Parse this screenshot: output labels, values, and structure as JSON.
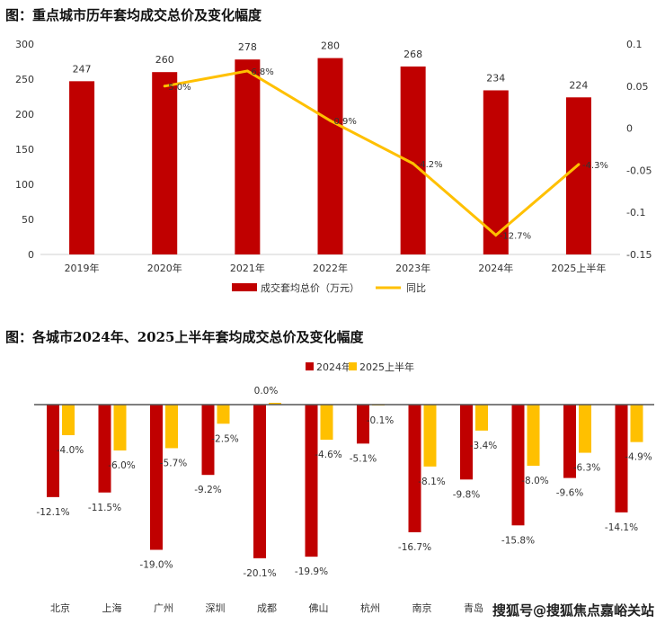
{
  "chart_data": [
    {
      "type": "bar",
      "title": "图：重点城市历年套均成交总价及变化幅度",
      "categories": [
        "2019年",
        "2020年",
        "2021年",
        "2022年",
        "2023年",
        "2024年",
        "2025上半年"
      ],
      "series": [
        {
          "name": "成交套均总价（万元）",
          "type": "bar",
          "axis": "left",
          "color": "#C00000",
          "values": [
            247,
            260,
            278,
            280,
            268,
            234,
            224
          ],
          "labels": [
            "247",
            "260",
            "278",
            "280",
            "268",
            "234",
            "224"
          ]
        },
        {
          "name": "同比",
          "type": "line",
          "axis": "right",
          "color": "#FFC000",
          "values": [
            null,
            0.05,
            0.068,
            0.009,
            -0.042,
            -0.127,
            -0.043
          ],
          "labels": [
            "",
            "5.0%",
            "6.8%",
            "0.9%",
            "-4.2%",
            "-12.7%",
            "-4.3%"
          ]
        }
      ],
      "ylim": [
        0,
        300
      ],
      "yticks": [
        "0",
        "50",
        "100",
        "150",
        "200",
        "250",
        "300"
      ],
      "y2lim": [
        -0.15,
        0.1
      ],
      "y2ticks": [
        "-0.15",
        "-0.1",
        "-0.05",
        "0",
        "0.05",
        "0.1"
      ],
      "legend": "bottom",
      "grid": false
    },
    {
      "type": "bar",
      "title": "图：各城市2024年、2025上半年套均成交总价及变化幅度",
      "categories": [
        "北京",
        "上海",
        "广州",
        "深圳",
        "成都",
        "佛山",
        "杭州",
        "南京",
        "青岛",
        "",
        "",
        ""
      ],
      "series": [
        {
          "name": "2024年",
          "color": "#C00000",
          "values": [
            -12.1,
            -11.5,
            -19.0,
            -9.2,
            -20.1,
            -19.9,
            -5.1,
            -16.7,
            -9.8,
            -15.8,
            -9.6,
            -14.1
          ],
          "labels": [
            "-12.1%",
            "-11.5%",
            "-19.0%",
            "-9.2%",
            "-20.1%",
            "-19.9%",
            "-5.1%",
            "-16.7%",
            "-9.8%",
            "-15.8%",
            "-9.6%",
            "-14.1%"
          ]
        },
        {
          "name": "2025上半年",
          "color": "#FFC000",
          "values": [
            -4.0,
            -6.0,
            -5.7,
            -2.5,
            0.0,
            -4.6,
            -0.1,
            -8.1,
            -3.4,
            -8.0,
            -6.3,
            -4.9
          ],
          "labels": [
            "-4.0%",
            "-6.0%",
            "-5.7%",
            "-2.5%",
            "0.0%",
            "-4.6%",
            "-0.1%",
            "-8.1%",
            "-3.4%",
            "-8.0%",
            "-6.3%",
            "-4.9%"
          ]
        }
      ],
      "legend": "top",
      "grid": false
    }
  ],
  "watermark": "搜狐号@搜狐焦点嘉峪关站"
}
